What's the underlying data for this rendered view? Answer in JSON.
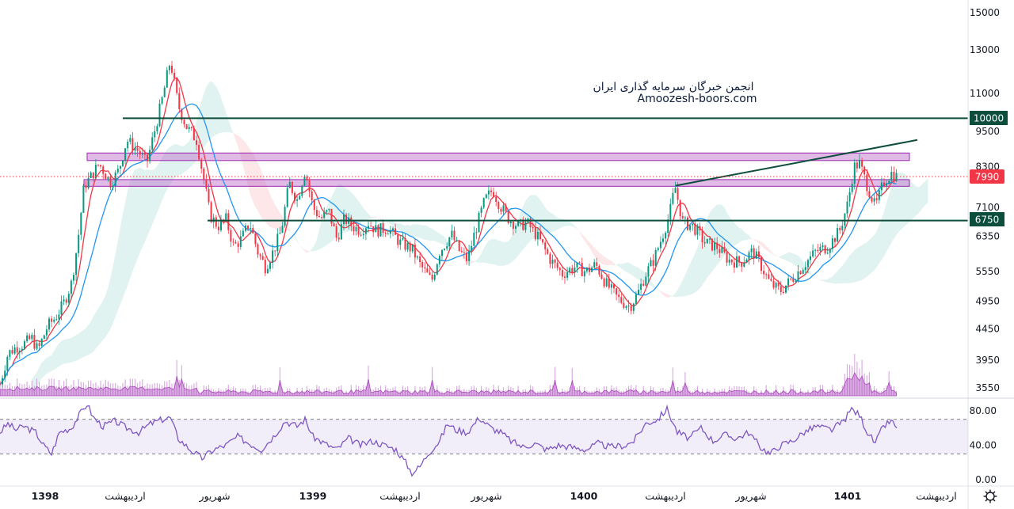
{
  "watermark": {
    "line1": "انجمن خبرگان سرمایه گذاری ایران",
    "line2": "Amoozesh-boors.com"
  },
  "price_tags": {
    "level_high": "10000",
    "current": "7990",
    "level_low": "6750"
  },
  "chart_data": [
    {
      "type": "candlestick",
      "title": "",
      "y_scale": "log",
      "y_ticks": [
        15000,
        13000,
        11000,
        9500,
        8300,
        7100,
        6350,
        5550,
        4950,
        4450,
        3950,
        3550
      ],
      "y_tick_labels": [
        "15000",
        "13000",
        "11000",
        "9500",
        "8300",
        "7100",
        "6350",
        "5550",
        "4950",
        "4450",
        "3950",
        "3550"
      ],
      "x_labels": [
        "1398",
        "اردیبهشت",
        "شهریور",
        "1399",
        "اردیبهشت",
        "شهریور",
        "1400",
        "اردیبهشت",
        "شهریور",
        "1401",
        "اردیبهشت"
      ],
      "x_labels_bold": [
        "1398",
        "1399",
        "1400",
        "1401"
      ],
      "last_price": 7990,
      "horizontal_levels": [
        10000,
        6750
      ],
      "zones": [
        {
          "from": 8500,
          "to": 8750
        },
        {
          "from": 7700,
          "to": 7900
        }
      ],
      "price_path": [
        [
          0,
          3600
        ],
        [
          10,
          4050
        ],
        [
          20,
          4150
        ],
        [
          30,
          4200
        ],
        [
          40,
          4300
        ],
        [
          48,
          4100
        ],
        [
          60,
          4500
        ],
        [
          70,
          4650
        ],
        [
          80,
          4900
        ],
        [
          90,
          5300
        ],
        [
          98,
          6200
        ],
        [
          106,
          7700
        ],
        [
          115,
          8000
        ],
        [
          125,
          8400
        ],
        [
          140,
          7800
        ],
        [
          150,
          8200
        ],
        [
          160,
          9200
        ],
        [
          175,
          8800
        ],
        [
          185,
          8400
        ],
        [
          195,
          9500
        ],
        [
          205,
          10800
        ],
        [
          215,
          12500
        ],
        [
          225,
          10500
        ],
        [
          235,
          9700
        ],
        [
          248,
          9200
        ],
        [
          258,
          7800
        ],
        [
          265,
          6900
        ],
        [
          275,
          6600
        ],
        [
          285,
          6800
        ],
        [
          295,
          6100
        ],
        [
          305,
          6300
        ],
        [
          315,
          6700
        ],
        [
          325,
          6000
        ],
        [
          335,
          5650
        ],
        [
          345,
          6000
        ],
        [
          355,
          6500
        ],
        [
          365,
          7800
        ],
        [
          375,
          7300
        ],
        [
          385,
          8200
        ],
        [
          395,
          7100
        ],
        [
          405,
          6800
        ],
        [
          415,
          7000
        ],
        [
          425,
          6300
        ],
        [
          435,
          6800
        ],
        [
          445,
          6600
        ],
        [
          455,
          6500
        ],
        [
          465,
          6700
        ],
        [
          475,
          6500
        ],
        [
          490,
          6550
        ],
        [
          505,
          6200
        ],
        [
          520,
          6050
        ],
        [
          530,
          5700
        ],
        [
          545,
          5350
        ],
        [
          555,
          6000
        ],
        [
          570,
          6400
        ],
        [
          580,
          6000
        ],
        [
          590,
          5800
        ],
        [
          600,
          6500
        ],
        [
          612,
          7300
        ],
        [
          622,
          7600
        ],
        [
          630,
          7200
        ],
        [
          642,
          6800
        ],
        [
          655,
          6600
        ],
        [
          665,
          6700
        ],
        [
          680,
          6300
        ],
        [
          695,
          5800
        ],
        [
          710,
          5500
        ],
        [
          725,
          5650
        ],
        [
          740,
          5550
        ],
        [
          752,
          5700
        ],
        [
          765,
          5300
        ],
        [
          780,
          5000
        ],
        [
          795,
          4850
        ],
        [
          805,
          5100
        ],
        [
          815,
          5500
        ],
        [
          825,
          5800
        ],
        [
          835,
          6300
        ],
        [
          845,
          6900
        ],
        [
          852,
          7700
        ],
        [
          862,
          6700
        ],
        [
          875,
          6600
        ],
        [
          890,
          6200
        ],
        [
          905,
          6100
        ],
        [
          920,
          5800
        ],
        [
          935,
          5750
        ],
        [
          950,
          6000
        ],
        [
          960,
          5700
        ],
        [
          972,
          5300
        ],
        [
          985,
          5150
        ],
        [
          1000,
          5400
        ],
        [
          1015,
          5700
        ],
        [
          1030,
          6000
        ],
        [
          1045,
          6100
        ],
        [
          1060,
          6500
        ],
        [
          1070,
          7200
        ],
        [
          1078,
          8300
        ],
        [
          1085,
          8400
        ],
        [
          1095,
          7700
        ],
        [
          1105,
          7100
        ],
        [
          1115,
          7800
        ],
        [
          1125,
          8100
        ],
        [
          1132,
          7990
        ]
      ]
    },
    {
      "type": "line",
      "title": "",
      "y_ticks": [
        80,
        40,
        0
      ],
      "y_tick_labels": [
        "80.00",
        "40.00",
        "0.00"
      ],
      "band": [
        70,
        30
      ],
      "line_points": [
        [
          0,
          55
        ],
        [
          10,
          65
        ],
        [
          20,
          58
        ],
        [
          30,
          62
        ],
        [
          45,
          55
        ],
        [
          55,
          40
        ],
        [
          65,
          30
        ],
        [
          75,
          55
        ],
        [
          90,
          60
        ],
        [
          100,
          75
        ],
        [
          110,
          88
        ],
        [
          118,
          72
        ],
        [
          130,
          62
        ],
        [
          145,
          68
        ],
        [
          160,
          60
        ],
        [
          175,
          55
        ],
        [
          190,
          65
        ],
        [
          205,
          70
        ],
        [
          215,
          72
        ],
        [
          225,
          48
        ],
        [
          240,
          35
        ],
        [
          255,
          25
        ],
        [
          270,
          35
        ],
        [
          285,
          40
        ],
        [
          300,
          50
        ],
        [
          315,
          42
        ],
        [
          330,
          35
        ],
        [
          345,
          50
        ],
        [
          360,
          68
        ],
        [
          375,
          62
        ],
        [
          385,
          70
        ],
        [
          395,
          50
        ],
        [
          410,
          42
        ],
        [
          425,
          35
        ],
        [
          440,
          48
        ],
        [
          455,
          40
        ],
        [
          470,
          45
        ],
        [
          485,
          40
        ],
        [
          500,
          35
        ],
        [
          512,
          20
        ],
        [
          520,
          8
        ],
        [
          530,
          15
        ],
        [
          540,
          30
        ],
        [
          555,
          45
        ],
        [
          565,
          65
        ],
        [
          575,
          58
        ],
        [
          590,
          55
        ],
        [
          605,
          72
        ],
        [
          620,
          60
        ],
        [
          632,
          55
        ],
        [
          645,
          45
        ],
        [
          660,
          38
        ],
        [
          675,
          42
        ],
        [
          690,
          35
        ],
        [
          705,
          40
        ],
        [
          720,
          38
        ],
        [
          740,
          35
        ],
        [
          755,
          42
        ],
        [
          770,
          38
        ],
        [
          790,
          40
        ],
        [
          800,
          45
        ],
        [
          815,
          65
        ],
        [
          830,
          70
        ],
        [
          842,
          82
        ],
        [
          855,
          55
        ],
        [
          870,
          48
        ],
        [
          885,
          60
        ],
        [
          900,
          45
        ],
        [
          915,
          52
        ],
        [
          930,
          48
        ],
        [
          945,
          55
        ],
        [
          960,
          38
        ],
        [
          972,
          30
        ],
        [
          985,
          40
        ],
        [
          1000,
          45
        ],
        [
          1015,
          55
        ],
        [
          1030,
          62
        ],
        [
          1050,
          58
        ],
        [
          1065,
          68
        ],
        [
          1075,
          82
        ],
        [
          1085,
          75
        ],
        [
          1095,
          55
        ],
        [
          1105,
          42
        ],
        [
          1115,
          62
        ],
        [
          1125,
          68
        ],
        [
          1132,
          60
        ]
      ]
    }
  ]
}
